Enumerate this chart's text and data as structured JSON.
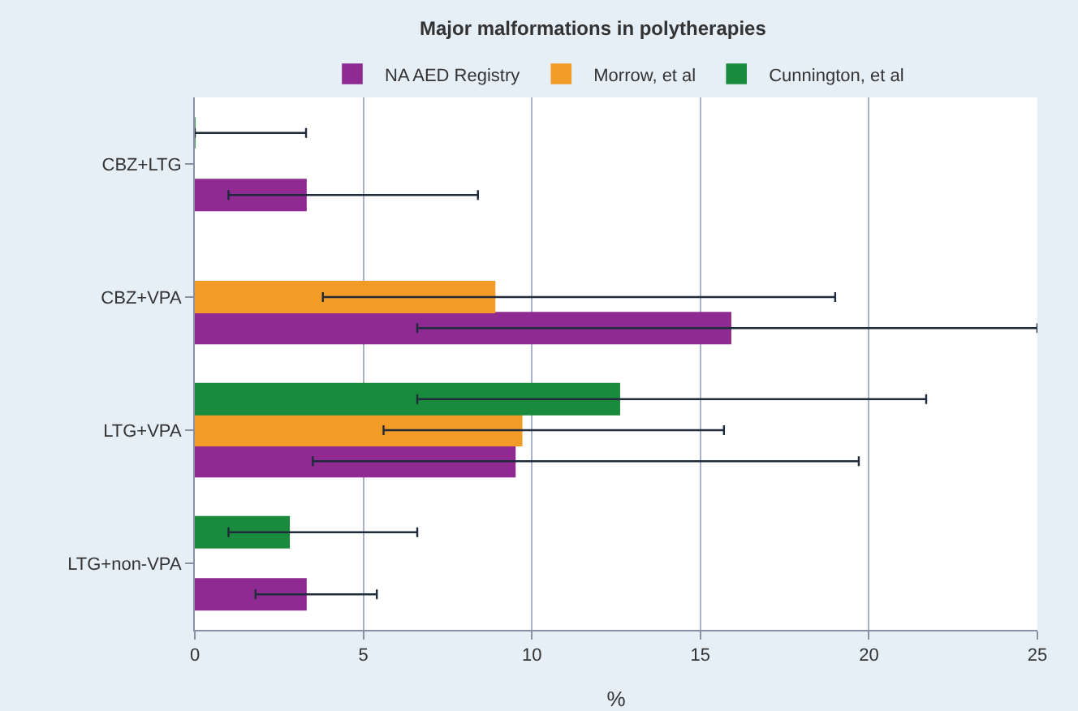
{
  "chart_data": {
    "type": "bar",
    "orientation": "horizontal",
    "title": "Major malformations in polytherapies",
    "xlabel": "%",
    "categories": [
      "CBZ+LTG",
      "CBZ+VPA",
      "LTG+VPA",
      "LTG+non-VPA"
    ],
    "series": [
      {
        "name": "NA AED Registry",
        "color": "#8e2a92",
        "values": [
          3.3,
          15.9,
          9.5,
          3.3
        ],
        "errors": [
          [
            1.0,
            8.4
          ],
          [
            6.6,
            25
          ],
          [
            3.5,
            19.7
          ],
          [
            1.8,
            5.4
          ]
        ]
      },
      {
        "name": "Morrow, et al",
        "color": "#f29b26",
        "values": [
          null,
          8.9,
          9.7,
          null
        ],
        "errors": [
          null,
          [
            3.8,
            19.0
          ],
          [
            5.6,
            15.7
          ],
          null
        ]
      },
      {
        "name": "Cunnington, et al",
        "color": "#1a8a3c",
        "values": [
          0,
          null,
          12.6,
          2.8
        ],
        "errors": [
          [
            0,
            3.3
          ],
          null,
          [
            6.6,
            21.7
          ],
          [
            1.0,
            6.6
          ]
        ]
      }
    ],
    "xlim": [
      0,
      25
    ],
    "xticks": [
      0,
      5,
      10,
      15,
      20,
      25
    ],
    "grid": "x",
    "legend": "top"
  }
}
